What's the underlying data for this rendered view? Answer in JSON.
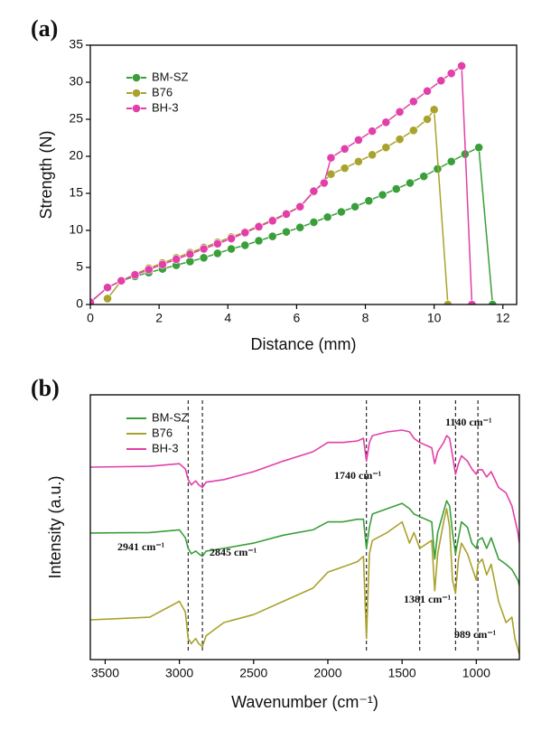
{
  "chart_data": [
    {
      "type": "line",
      "panel": "(a)",
      "x_label": "Distance (mm)",
      "y_label": "Strength (N)",
      "xlim": [
        0,
        12.4
      ],
      "xticks": [
        0,
        2,
        4,
        6,
        8,
        10,
        12
      ],
      "ylim": [
        0,
        35
      ],
      "yticks": [
        0,
        5,
        10,
        15,
        20,
        25,
        30,
        35
      ],
      "legend": "upper left",
      "markers": true,
      "series": [
        {
          "name": "BM-SZ",
          "color": "#3a9e3a",
          "x": [
            0,
            0.5,
            0.9,
            1.3,
            1.7,
            2.1,
            2.5,
            2.9,
            3.3,
            3.7,
            4.1,
            4.5,
            4.9,
            5.3,
            5.7,
            6.1,
            6.5,
            6.9,
            7.3,
            7.7,
            8.1,
            8.5,
            8.9,
            9.3,
            9.7,
            10.1,
            10.5,
            10.9,
            11.3,
            11.7
          ],
          "values": [
            0.3,
            2.3,
            3.2,
            3.8,
            4.3,
            4.8,
            5.3,
            5.8,
            6.3,
            6.9,
            7.5,
            8.0,
            8.6,
            9.2,
            9.8,
            10.4,
            11.1,
            11.8,
            12.5,
            13.2,
            14.0,
            14.8,
            15.6,
            16.4,
            17.3,
            18.3,
            19.3,
            20.3,
            21.2,
            0
          ]
        },
        {
          "name": "B76",
          "color": "#a9a22c",
          "x": [
            0.5,
            0.9,
            1.3,
            1.7,
            2.1,
            2.5,
            2.9,
            3.3,
            3.7,
            4.1,
            4.5,
            4.9,
            5.3,
            5.7,
            6.1,
            6.5,
            7.0,
            7.4,
            7.8,
            8.2,
            8.6,
            9.0,
            9.4,
            9.8,
            10.0,
            10.4
          ],
          "values": [
            0.8,
            3.2,
            4.1,
            4.9,
            5.6,
            6.3,
            7.0,
            7.7,
            8.4,
            9.1,
            9.8,
            10.6,
            11.4,
            12.3,
            13.2,
            15.2,
            17.6,
            18.4,
            19.3,
            20.2,
            21.2,
            22.3,
            23.5,
            25.0,
            26.3,
            0
          ]
        },
        {
          "name": "BH-3",
          "color": "#e23fa9",
          "x": [
            0,
            0.5,
            0.9,
            1.3,
            1.7,
            2.1,
            2.5,
            2.9,
            3.3,
            3.7,
            4.1,
            4.5,
            4.9,
            5.3,
            5.7,
            6.1,
            6.5,
            6.8,
            7.0,
            7.4,
            7.8,
            8.2,
            8.6,
            9.0,
            9.4,
            9.8,
            10.2,
            10.5,
            10.8,
            11.1
          ],
          "values": [
            0.3,
            2.3,
            3.2,
            4.0,
            4.7,
            5.4,
            6.1,
            6.8,
            7.5,
            8.2,
            8.9,
            9.7,
            10.5,
            11.3,
            12.2,
            13.2,
            15.3,
            16.4,
            19.8,
            21.0,
            22.2,
            23.4,
            24.6,
            26.0,
            27.4,
            28.8,
            30.2,
            31.2,
            32.2,
            0
          ]
        }
      ]
    },
    {
      "type": "spectrum",
      "panel": "(b)",
      "x_label": "Wavenumber (cm⁻¹)",
      "y_label": "Intensity (a.u.)",
      "xlim": [
        3600,
        710
      ],
      "xticks": [
        3500,
        3000,
        2500,
        2000,
        1500,
        1000
      ],
      "ylim": [
        0,
        100
      ],
      "legend": "upper left",
      "x": [
        3600,
        3200,
        3000,
        2960,
        2941,
        2920,
        2890,
        2870,
        2845,
        2820,
        2700,
        2500,
        2300,
        2100,
        2000,
        1900,
        1800,
        1760,
        1740,
        1720,
        1700,
        1600,
        1500,
        1450,
        1420,
        1381,
        1300,
        1280,
        1260,
        1220,
        1200,
        1180,
        1160,
        1140,
        1120,
        1100,
        1060,
        1030,
        1000,
        989,
        960,
        930,
        900,
        850,
        800,
        760,
        740,
        720,
        710
      ],
      "series": [
        {
          "name": "BM-SZ",
          "color": "#3a9e3a",
          "values": [
            47.8,
            48,
            49,
            46,
            42,
            40,
            41,
            40,
            39,
            41,
            42,
            44,
            47,
            49,
            52,
            52,
            53,
            53,
            42,
            50,
            55,
            57,
            59,
            57,
            55,
            54,
            52,
            38,
            48,
            56,
            60,
            58,
            48,
            40,
            46,
            52,
            50,
            44,
            42,
            45,
            46,
            42,
            46,
            38,
            36,
            34,
            32,
            30,
            28
          ]
        },
        {
          "name": "B76",
          "color": "#a9a22c",
          "values": [
            15,
            16,
            22,
            18,
            8,
            6,
            8,
            6,
            5,
            9,
            14,
            17,
            22,
            27,
            33,
            35,
            37,
            39,
            8,
            40,
            45,
            48,
            52,
            44,
            48,
            42,
            45,
            26,
            40,
            52,
            57,
            50,
            30,
            25,
            38,
            44,
            40,
            35,
            30,
            36,
            38,
            32,
            36,
            22,
            14,
            16,
            8,
            4,
            2
          ]
        },
        {
          "name": "BH-3",
          "color": "#e23fa9",
          "values": [
            72.7,
            73,
            74,
            72,
            68,
            66,
            67.5,
            66,
            65,
            67,
            68,
            71,
            75,
            78.5,
            82,
            82,
            82.6,
            83.6,
            75,
            82,
            84.6,
            86,
            86.7,
            86,
            83.6,
            82,
            80,
            74,
            78.5,
            82,
            84.6,
            83.6,
            77,
            70,
            74,
            77,
            75,
            72,
            70,
            71.7,
            71.7,
            69,
            71,
            65,
            63,
            58,
            53,
            48,
            44
          ]
        }
      ],
      "annotations": [
        {
          "x": 2941,
          "label": "2941 cm⁻¹"
        },
        {
          "x": 2845,
          "label": "2845 cm⁻¹"
        },
        {
          "x": 1740,
          "label": "1740 cm⁻¹"
        },
        {
          "x": 1381,
          "label": "1381 cm⁻¹"
        },
        {
          "x": 1140,
          "label": "1140 cm⁻¹"
        },
        {
          "x": 989,
          "label": "989 cm⁻¹"
        }
      ]
    }
  ]
}
